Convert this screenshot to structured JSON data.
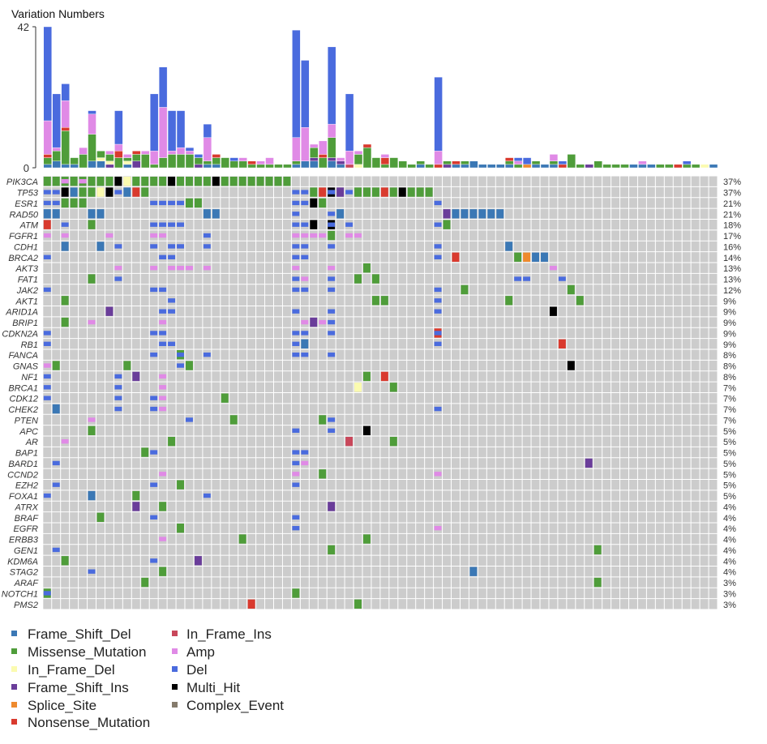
{
  "chart_data": {
    "type": "heatmap",
    "subtype": "oncoplot",
    "bar_title": "Variation Numbers",
    "bar_ylim": [
      0,
      42
    ],
    "bar_yticks": [
      "42",
      "0"
    ],
    "n_samples": 76,
    "types": {
      "F": {
        "label": "Frame_Shift_Del",
        "color": "#3b78b5"
      },
      "G": {
        "label": "Missense_Mutation",
        "color": "#4f9d3a"
      },
      "Y": {
        "label": "In_Frame_Del",
        "color": "#fbfbb0"
      },
      "P": {
        "label": "Frame_Shift_Ins",
        "color": "#6a3d9a"
      },
      "O": {
        "label": "Splice_Site",
        "color": "#ee8a2e"
      },
      "R": {
        "label": "Nonsense_Mutation",
        "color": "#d93a2e"
      },
      "I": {
        "label": "In_Frame_Ins",
        "color": "#c8475a"
      },
      "A": {
        "label": "Amp",
        "color": "#e08ae6"
      },
      "D": {
        "label": "Del",
        "color": "#4a6bde"
      },
      "M": {
        "label": "Multi_Hit",
        "color": "#000000"
      },
      "C": {
        "label": "Complex_Event",
        "color": "#857b6c"
      }
    },
    "legend": {
      "left": [
        "F",
        "G",
        "Y",
        "P",
        "O",
        "R"
      ],
      "right": [
        "I",
        "A",
        "D",
        "M",
        "C"
      ]
    },
    "background_color": "#cccccc",
    "bars": [
      "F1 G2 R1 A10 D28",
      "F2 G3 A1 D16",
      "F1 G10 R1 A8 D5",
      "F1 G2",
      "G4 A2",
      "F2 G8 A6 D1",
      "F2 Y1 G2",
      "P1 Y1 G2 A1",
      "G3 R2 A2 D10",
      "F1 Y1 G1 A1",
      "P2 G2 R1",
      "G4 A1",
      "G1 A4 D17",
      "G3 A15 D12",
      "G4 A1 D12",
      "G4 A2 D11",
      "G4 A1 D1",
      "P1 G2 D1",
      "F1 G1 A7 D4",
      "F1 G2 R1",
      "G3",
      "G2 D1",
      "G2 A1",
      "G1 R1",
      "G1 A1",
      "G1 A2",
      "G1",
      "G1",
      "F1 G1 A7 D32",
      "F2 A10 D20",
      "F2 P1 G3 A1",
      "G3 R1 A4",
      "F2 P1 G6 A4 D23",
      "F1 P1 A1",
      "I1 A4 D17",
      "Y1 G3 A1",
      "G6 R1",
      "G3",
      "G1 R2 A1",
      "G3",
      "G2",
      "G1",
      "F1 G1",
      "G1",
      "R1 A4 D22",
      "P1 G1",
      "F1 R1",
      "F1 G1",
      "F2",
      "F1",
      "F1",
      "F1",
      "F1 G1 R1",
      "G1 A1 D1",
      "O1 D2",
      "F1 G1",
      "F1",
      "F1 G1 A2",
      "R1 D1",
      "G4",
      "G1",
      "P1",
      "G2",
      "G1",
      "G1",
      "G1",
      "F1",
      "F1 A1",
      "F1",
      "G1",
      "G1",
      "R1",
      "G1 D1",
      "G1",
      "Y1",
      "F1"
    ],
    "genes": [
      {
        "name": "PIK3CA",
        "pct": "37%",
        "cells": "0-1:G 2:G+A 3:G 4:G+A 5-7:G 8:M 9:Y 10-13:G 14:M 15-18:G 19:M 20-27:G"
      },
      {
        "name": "TP53",
        "pct": "37%",
        "cells": "0-1:D 2:M 3:F 4-5:G 6:Y 7:M 8:D 9:F 10:R 11:G 28-29:D 30:G 31:R 32:M+D 33:P 34:D 35-37:G 38:R 39:G 40:M 41-43:G"
      },
      {
        "name": "ESR1",
        "pct": "21%",
        "cells": "0-1:D 2-4:G 12-15:D 16-17:G 28-29:D 30:M 31:G 44:D"
      },
      {
        "name": "RAD50",
        "pct": "21%",
        "cells": "0-1:F 5-6:F 18-19:F 28:D 32:D 33:F 45:P 46-51:F"
      },
      {
        "name": "ATM",
        "pct": "18%",
        "cells": "0:R 2:D 5:G 12-15:D 28-29:D 30:M 32:M+D 34:D 44:D 45:G"
      },
      {
        "name": "FGFR1",
        "pct": "17%",
        "cells": "0:A 2:A 7:A 12-13:A 18:D 28-31:A 32:G 34-35:A"
      },
      {
        "name": "CDH1",
        "pct": "16%",
        "cells": "2:F 6:F 8:D 12:D 14-15:D 18:D 28-29:D 32:D 44:D 52:F"
      },
      {
        "name": "BRCA2",
        "pct": "14%",
        "cells": "0:D 13-14:D 28-29:D 44:D 46:R 53:G 54:O 55-56:F"
      },
      {
        "name": "AKT3",
        "pct": "13%",
        "cells": "8:A 12:A 14-16:A 18:A 28:A 32:A 36:G 57:A"
      },
      {
        "name": "FAT1",
        "pct": "13%",
        "cells": "5:G 8:D 28:D 29:A 32:D 35:G 37:G 53-54:D 58:D"
      },
      {
        "name": "JAK2",
        "pct": "12%",
        "cells": "0:D 12-13:D 28-29:D 32:D 44:D 47:G 59:G"
      },
      {
        "name": "AKT1",
        "pct": "9%",
        "cells": "2:G 14:D 37-38:G 44:D 52:G 60:G"
      },
      {
        "name": "ARID1A",
        "pct": "9%",
        "cells": "7:P 13-14:D 28:D 32:D 44:D 57:M"
      },
      {
        "name": "BRIP1",
        "pct": "9%",
        "cells": "2:G 5:A 13:A 29:A 30:P 31:A 32:D"
      },
      {
        "name": "CDKN2A",
        "pct": "9%",
        "cells": "0:D 12-13:D 28-29:D 32:D 44:R+D"
      },
      {
        "name": "RB1",
        "pct": "9%",
        "cells": "0:D 13-14:D 28:D 29:F 44:D 58:R"
      },
      {
        "name": "FANCA",
        "pct": "8%",
        "cells": "12:D 15:G+D 18:D 28-29:D 32:D"
      },
      {
        "name": "GNAS",
        "pct": "8%",
        "cells": "0:A 1:G 9:G 15:D 16:G 59:M"
      },
      {
        "name": "NF1",
        "pct": "8%",
        "cells": "0:D 8:D 10:P 13:A 36:G 38:R"
      },
      {
        "name": "BRCA1",
        "pct": "7%",
        "cells": "0:D 8:D 13:A 35:Y 39:G"
      },
      {
        "name": "CDK12",
        "pct": "7%",
        "cells": "0:D 8:D 12:D 13:A 20:G"
      },
      {
        "name": "CHEK2",
        "pct": "7%",
        "cells": "1:F 8:D 12:D 13:A 44:D"
      },
      {
        "name": "PTEN",
        "pct": "7%",
        "cells": "5:A 16:D 21:G 31:G 32:D"
      },
      {
        "name": "APC",
        "pct": "5%",
        "cells": "5:G 28:D 32:D 36:M"
      },
      {
        "name": "AR",
        "pct": "5%",
        "cells": "2:A 14:G 34:I 39:G"
      },
      {
        "name": "BAP1",
        "pct": "5%",
        "cells": "11:G 12:D 28-29:D"
      },
      {
        "name": "BARD1",
        "pct": "5%",
        "cells": "1:D 28:D 29:A 61:P"
      },
      {
        "name": "CCND2",
        "pct": "5%",
        "cells": "13:A 28:A 31:G 44:A"
      },
      {
        "name": "EZH2",
        "pct": "5%",
        "cells": "1:D 12:D 15:G 28:D"
      },
      {
        "name": "FOXA1",
        "pct": "5%",
        "cells": "0:D 5:F 10:G 18:D"
      },
      {
        "name": "ATRX",
        "pct": "4%",
        "cells": "10:P 13:G 32:P"
      },
      {
        "name": "BRAF",
        "pct": "4%",
        "cells": "6:G 12:D 28:D"
      },
      {
        "name": "EGFR",
        "pct": "4%",
        "cells": "15:G 28:D 44:A"
      },
      {
        "name": "ERBB3",
        "pct": "4%",
        "cells": "13:A 22:G 36:G"
      },
      {
        "name": "GEN1",
        "pct": "4%",
        "cells": "1:D 32:G 62:G"
      },
      {
        "name": "KDM6A",
        "pct": "4%",
        "cells": "2:G 12:D 17:P"
      },
      {
        "name": "STAG2",
        "pct": "4%",
        "cells": "5:D 13:G 48:F"
      },
      {
        "name": "ARAF",
        "pct": "3%",
        "cells": "11:G 62:G"
      },
      {
        "name": "NOTCH1",
        "pct": "3%",
        "cells": "0:G+D 28:G"
      },
      {
        "name": "PMS2",
        "pct": "3%",
        "cells": "23:R 35:G"
      }
    ]
  }
}
